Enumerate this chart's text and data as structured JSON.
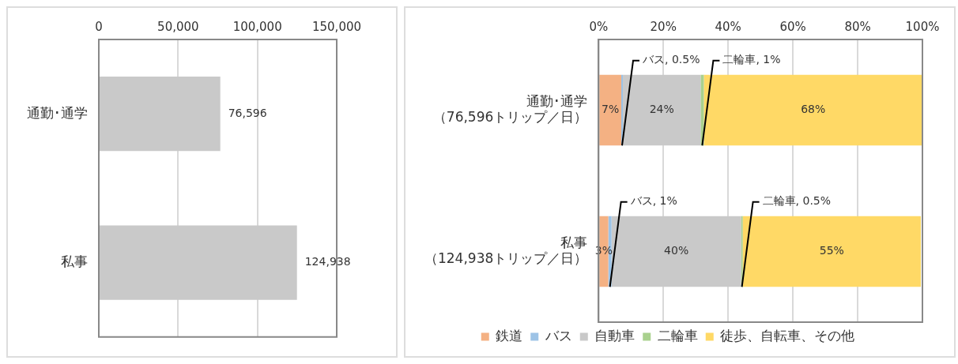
{
  "chart_data": [
    {
      "type": "bar",
      "orientation": "horizontal",
      "categories": [
        "通勤･通学",
        "私事"
      ],
      "series": [
        {
          "color": "#c9c9c9",
          "values": [
            76596,
            124938
          ],
          "value_labels": [
            "76,596",
            "124,938"
          ]
        }
      ],
      "xlim": [
        0,
        150000
      ],
      "xticks": [
        {
          "value": 0,
          "label": "0"
        },
        {
          "value": 50000,
          "label": "50,000"
        },
        {
          "value": 100000,
          "label": "100,000"
        },
        {
          "value": 150000,
          "label": "150,000"
        }
      ],
      "grid": "x",
      "legend": false
    },
    {
      "type": "bar",
      "orientation": "horizontal",
      "stacked": true,
      "categories": [
        "通勤･通学（76,596トリップ／日）",
        "私事（124,938トリップ／日）"
      ],
      "series": [
        {
          "name": "鉄道",
          "color": "#f4b183",
          "values": [
            7,
            3
          ],
          "value_labels": [
            "7%",
            "3%"
          ]
        },
        {
          "name": "バス",
          "color": "#9dc3e6",
          "values": [
            0.5,
            1
          ],
          "value_labels": [
            "バス, 0.5%",
            "バス, 1%"
          ]
        },
        {
          "name": "自動車",
          "color": "#c9c9c9",
          "values": [
            24,
            40
          ],
          "value_labels": [
            "24%",
            "40%"
          ]
        },
        {
          "name": "二輪車",
          "color": "#a9d18e",
          "values": [
            1,
            0.5
          ],
          "value_labels": [
            "二輪車, 1%",
            "二輪車, 0.5%"
          ]
        },
        {
          "name": "徒歩、自転車、その他",
          "color": "#ffd966",
          "values": [
            67.5,
            55
          ],
          "value_labels": [
            "68%",
            "55%"
          ]
        }
      ],
      "xlim": [
        0,
        100
      ],
      "xticks": [
        {
          "value": 0,
          "label": "0%"
        },
        {
          "value": 20,
          "label": "20%"
        },
        {
          "value": 40,
          "label": "40%"
        },
        {
          "value": 60,
          "label": "60%"
        },
        {
          "value": 80,
          "label": "80%"
        },
        {
          "value": 100,
          "label": "100%"
        }
      ],
      "grid": "x",
      "legend": "bottom"
    }
  ]
}
